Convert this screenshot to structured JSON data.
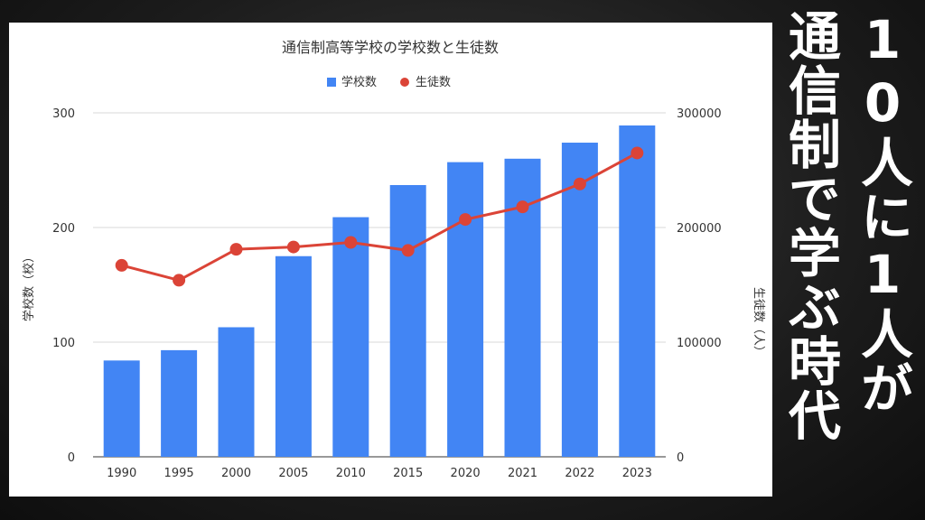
{
  "headline": {
    "line1": "10人に1人が",
    "line2": "通信制で学ぶ時代"
  },
  "chart_data": {
    "type": "bar+line",
    "title": "通信制高等学校の学校数と生徒数",
    "categories": [
      "1990",
      "1995",
      "2000",
      "2005",
      "2010",
      "2015",
      "2020",
      "2021",
      "2022",
      "2023"
    ],
    "series": [
      {
        "name": "学校数",
        "type": "bar",
        "axis": "left",
        "color": "#4285F4",
        "values": [
          84,
          93,
          113,
          175,
          209,
          237,
          257,
          260,
          274,
          289
        ]
      },
      {
        "name": "生徒数",
        "type": "line",
        "axis": "right",
        "color": "#DB4437",
        "values": [
          167000,
          154000,
          181000,
          183000,
          187000,
          180000,
          207000,
          218000,
          238000,
          265000
        ]
      }
    ],
    "ylabel_left": "学校数（校）",
    "ylabel_right": "生徒数（人）",
    "ylim_left": [
      0,
      300
    ],
    "ylim_right": [
      0,
      300000
    ],
    "yticks_left": [
      "0",
      "100",
      "200",
      "300"
    ],
    "yticks_right": [
      "0",
      "100000",
      "200000",
      "300000"
    ],
    "grid": true,
    "legend": "top-center"
  }
}
